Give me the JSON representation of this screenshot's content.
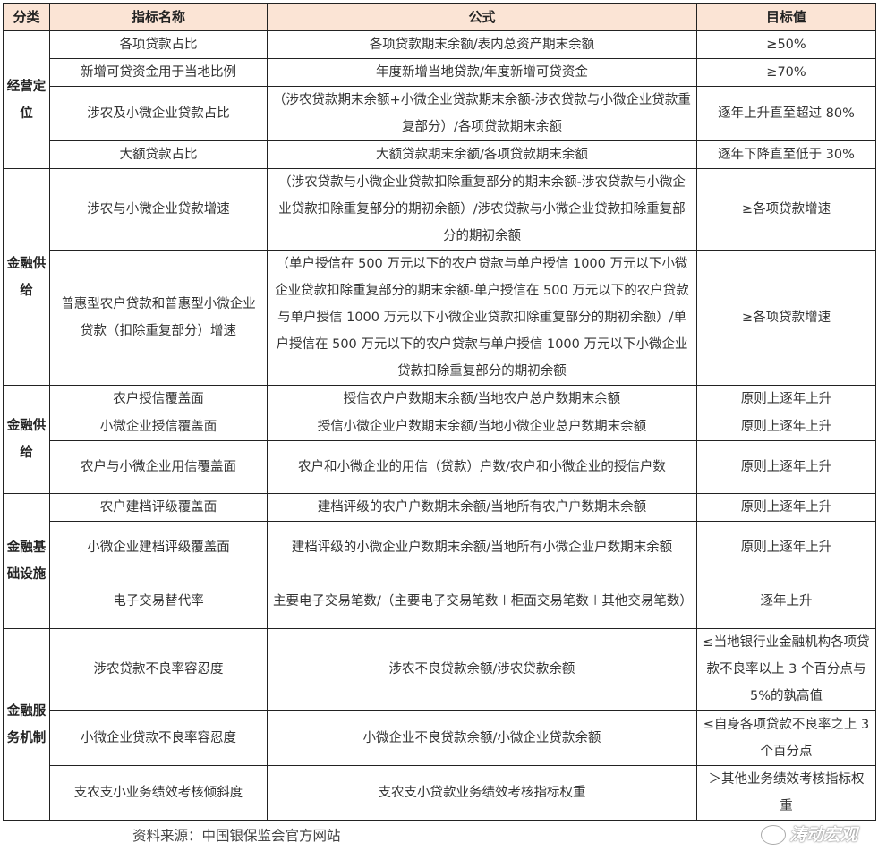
{
  "headers": [
    "分类",
    "指标名称",
    "公式",
    "目标值"
  ],
  "sections": [
    {
      "category": "经营定位",
      "rows": [
        {
          "name": "各项贷款占比",
          "formula": "各项贷款期末余额/表内总资产期末余额",
          "target": "≥50%"
        },
        {
          "name": "新增可贷资金用于当地比例",
          "formula": "年度新增当地贷款/年度新增可贷资金",
          "target": "≥70%"
        },
        {
          "name": "涉农及小微企业贷款占比",
          "formula": "（涉农贷款期末余额+小微企业贷款期末余额-涉农贷款与小微企业贷款重复部分）/各项贷款期末余额",
          "target": "逐年上升直至超过 80%"
        },
        {
          "name": "大额贷款占比",
          "formula": "大额贷款期末余额/各项贷款期末余额",
          "target": "逐年下降直至低于 30%"
        }
      ]
    },
    {
      "category": "金融供给",
      "rows": [
        {
          "name": "涉农与小微企业贷款增速",
          "formula": "（涉农贷款与小微企业贷款扣除重复部分的期末余额-涉农贷款与小微企业贷款扣除重复部分的期初余额）/涉农贷款与小微企业贷款扣除重复部分的期初余额",
          "target": "≥各项贷款增速"
        },
        {
          "name": "普惠型农户贷款和普惠型小微企业贷款（扣除重复部分）增速",
          "formula": "（单户授信在 500 万元以下的农户贷款与单户授信 1000 万元以下小微企业贷款扣除重复部分的期末余额-单户授信在 500 万元以下的农户贷款与单户授信 1000 万元以下小微企业贷款扣除重复部分的期初余额）/单户授信在 500 万元以下的农户贷款与单户授信 1000 万元以下小微企业贷款扣除重复部分的期初余额",
          "target": "≥各项贷款增速"
        }
      ]
    },
    {
      "category": "金融供给",
      "rows": [
        {
          "name": "农户授信覆盖面",
          "formula": "授信农户户数期末余额/当地农户总户数期末余额",
          "target": "原则上逐年上升"
        },
        {
          "name": "小微企业授信覆盖面",
          "formula": "授信小微企业户数期末余额/当地小微企业总户数期末余额",
          "target": "原则上逐年上升"
        },
        {
          "name": "农户与小微企业用信覆盖面",
          "formula": "农户和小微企业的用信（贷款）户数/农户和小微企业的授信户数",
          "target": "原则上逐年上升"
        }
      ]
    },
    {
      "category": "金融基础设施",
      "rows": [
        {
          "name": "农户建档评级覆盖面",
          "formula": "建档评级的农户户数期末余额/当地所有农户户数期末余额",
          "target": "原则上逐年上升"
        },
        {
          "name": "小微企业建档评级覆盖面",
          "formula": "建档评级的小微企业户数期末余额/当地所有小微企业户数期末余额",
          "target": "原则上逐年上升"
        },
        {
          "name": "电子交易替代率",
          "formula": "主要电子交易笔数/（主要电子交易笔数＋柜面交易笔数＋其他交易笔数）",
          "target": "逐年上升"
        }
      ]
    },
    {
      "category": "金融服务机制",
      "rows": [
        {
          "name": "涉农贷款不良率容忍度",
          "formula": "涉农不良贷款余额/涉农贷款余额",
          "target": "≤当地银行业金融机构各项贷款不良率以上 3 个百分点与 5%的孰高值"
        },
        {
          "name": "小微企业贷款不良率容忍度",
          "formula": "小微企业不良贷款余额/小微企业贷款余额",
          "target": "≤自身各项贷款不良率之上 3 个百分点"
        },
        {
          "name": "支农支小业务绩效考核倾斜度",
          "formula": "支农支小贷款业务绩效考核指标权重",
          "target": "＞其他业务绩效考核指标权重"
        }
      ]
    }
  ],
  "source": "资料来源：中国银保监会官方网站",
  "watermark": "涛动宏观",
  "colors": {
    "header_bg": "#FBE4D5",
    "border": "#222222"
  }
}
